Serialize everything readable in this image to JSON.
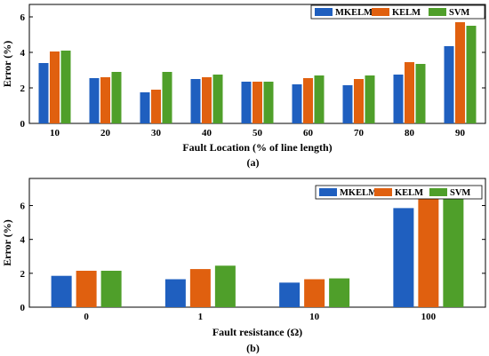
{
  "chart_data": [
    {
      "type": "bar",
      "panel_label": "(a)",
      "xlabel": "Fault Location (% of line length)",
      "ylabel": "Error (%)",
      "categories": [
        "10",
        "20",
        "30",
        "40",
        "50",
        "60",
        "70",
        "80",
        "90"
      ],
      "ylim": [
        0,
        6.7
      ],
      "yticks": [
        0,
        2,
        4,
        6
      ],
      "legend_position": "top-right",
      "grid": false,
      "series": [
        {
          "name": "MKELM",
          "color": "#1f5fbf",
          "values": [
            3.4,
            2.55,
            1.75,
            2.5,
            2.35,
            2.2,
            2.15,
            2.75,
            4.35
          ]
        },
        {
          "name": "KELM",
          "color": "#e0600f",
          "values": [
            4.05,
            2.6,
            1.9,
            2.6,
            2.35,
            2.55,
            2.5,
            3.45,
            5.7
          ]
        },
        {
          "name": "SVM",
          "color": "#4f9f2a",
          "values": [
            4.1,
            2.9,
            2.9,
            2.75,
            2.35,
            2.7,
            2.7,
            3.35,
            5.5
          ]
        }
      ]
    },
    {
      "type": "bar",
      "panel_label": "(b)",
      "xlabel": "Fault resistance (Ω)",
      "ylabel": "Error (%)",
      "categories": [
        "0",
        "1",
        "10",
        "100"
      ],
      "ylim": [
        0,
        7.6
      ],
      "yticks": [
        0,
        2,
        4,
        6
      ],
      "legend_position": "top-right",
      "grid": false,
      "series": [
        {
          "name": "MKELM",
          "color": "#1f5fbf",
          "values": [
            1.85,
            1.65,
            1.45,
            5.85
          ]
        },
        {
          "name": "KELM",
          "color": "#e0600f",
          "values": [
            2.15,
            2.25,
            1.65,
            6.4
          ]
        },
        {
          "name": "SVM",
          "color": "#4f9f2a",
          "values": [
            2.15,
            2.45,
            1.7,
            6.65
          ]
        }
      ]
    }
  ]
}
